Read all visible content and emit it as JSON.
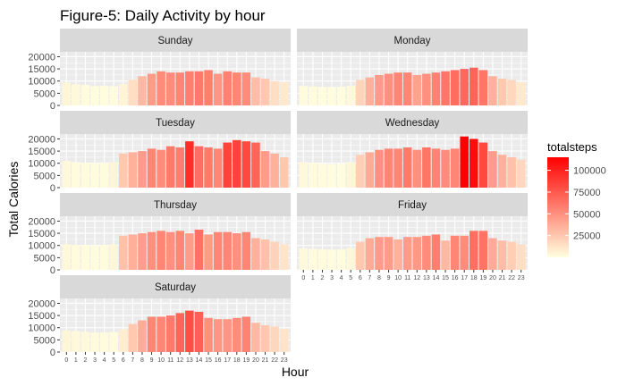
{
  "chart_data": {
    "type": "bar",
    "title": "Figure-5: Daily Activity by hour",
    "xlabel": "Hour",
    "ylabel": "Total Calories",
    "categories": [
      "0",
      "1",
      "2",
      "3",
      "4",
      "5",
      "6",
      "7",
      "8",
      "9",
      "10",
      "11",
      "12",
      "13",
      "14",
      "15",
      "16",
      "17",
      "18",
      "19",
      "20",
      "21",
      "22",
      "23"
    ],
    "y_ticks": [
      "0",
      "5000",
      "10000",
      "15000",
      "20000"
    ],
    "ylim": [
      0,
      22000
    ],
    "grid": true,
    "facet_strip_color": "#d9d9d9",
    "panel_background": "#ebebeb",
    "legend": {
      "title": "totalsteps",
      "placement": "right",
      "ticks": [
        "25000",
        "50000",
        "75000",
        "100000"
      ],
      "range": [
        0,
        115000
      ],
      "low_color": "#ffffe0",
      "high_color": "#ff0000"
    },
    "facets": [
      {
        "name": "Sunday",
        "calories": [
          9300,
          8700,
          8400,
          7900,
          8000,
          7900,
          8800,
          10500,
          12000,
          13000,
          14000,
          13500,
          13500,
          14000,
          14000,
          14500,
          13000,
          14000,
          13500,
          13500,
          11500,
          11000,
          10000,
          9500
        ],
        "steps": [
          4000,
          2500,
          2000,
          1500,
          1000,
          1200,
          5000,
          15000,
          32000,
          45000,
          52000,
          52000,
          55000,
          58000,
          60000,
          58000,
          48000,
          57000,
          55000,
          52000,
          30000,
          25000,
          15000,
          10000
        ]
      },
      {
        "name": "Monday",
        "calories": [
          8000,
          7800,
          7600,
          7500,
          7600,
          8000,
          10500,
          11500,
          12500,
          13000,
          13500,
          13500,
          12500,
          13000,
          13500,
          14000,
          14500,
          15000,
          15500,
          14500,
          12000,
          11000,
          10500,
          9500
        ],
        "steps": [
          2000,
          1500,
          1000,
          1000,
          1000,
          3000,
          20000,
          35000,
          45000,
          50000,
          55000,
          55000,
          42000,
          50000,
          57000,
          62000,
          66000,
          68000,
          70000,
          62000,
          35000,
          25000,
          18000,
          10000
        ]
      },
      {
        "name": "Tuesday",
        "calories": [
          11000,
          10500,
          10200,
          10000,
          10200,
          10500,
          14000,
          14500,
          15000,
          16000,
          15500,
          17000,
          16500,
          19000,
          17000,
          16500,
          16000,
          18500,
          19500,
          19000,
          18500,
          15000,
          14000,
          12500
        ],
        "steps": [
          3000,
          2000,
          1500,
          1500,
          1500,
          5000,
          25000,
          35000,
          45000,
          55000,
          52000,
          60000,
          58000,
          95000,
          65000,
          60000,
          55000,
          85000,
          85000,
          82000,
          70000,
          45000,
          35000,
          25000
        ]
      },
      {
        "name": "Wednesday",
        "calories": [
          10500,
          10200,
          9800,
          9600,
          9800,
          10500,
          13500,
          14500,
          15500,
          16000,
          16000,
          16500,
          15500,
          16500,
          16000,
          15500,
          16000,
          21000,
          20000,
          18500,
          15000,
          13500,
          12500,
          11500
        ],
        "steps": [
          2500,
          1500,
          1200,
          1000,
          1000,
          4000,
          22000,
          38000,
          50000,
          55000,
          55000,
          60000,
          50000,
          62000,
          56000,
          52000,
          55000,
          115000,
          110000,
          82000,
          45000,
          35000,
          28000,
          18000
        ]
      },
      {
        "name": "Thursday",
        "calories": [
          10500,
          10200,
          10200,
          10000,
          10200,
          10500,
          14000,
          14500,
          15000,
          15500,
          16000,
          15500,
          16000,
          15000,
          16500,
          14500,
          15500,
          15500,
          15000,
          15500,
          13000,
          12500,
          11500,
          10500
        ],
        "steps": [
          3000,
          1800,
          1500,
          1200,
          1200,
          4500,
          28000,
          36000,
          44000,
          50000,
          55000,
          50000,
          55000,
          45000,
          64000,
          45000,
          55000,
          55000,
          50000,
          55000,
          35000,
          28000,
          20000,
          12000
        ]
      },
      {
        "name": "Friday",
        "calories": [
          8800,
          8600,
          8400,
          8300,
          8400,
          9000,
          11500,
          13000,
          13500,
          13500,
          12500,
          13500,
          13500,
          14000,
          14500,
          12000,
          14000,
          14000,
          16000,
          16000,
          13000,
          12000,
          11500,
          10500
        ],
        "steps": [
          2500,
          1500,
          1200,
          1000,
          1000,
          3500,
          25000,
          38000,
          45000,
          45000,
          35000,
          45000,
          46000,
          52000,
          58000,
          32000,
          55000,
          52000,
          65000,
          63000,
          38000,
          30000,
          22000,
          15000
        ]
      },
      {
        "name": "Saturday",
        "calories": [
          8800,
          8600,
          8300,
          8000,
          8000,
          8200,
          9300,
          11500,
          13000,
          14500,
          14500,
          15000,
          16000,
          17000,
          16500,
          14000,
          13500,
          13500,
          14000,
          14500,
          12000,
          11000,
          10500,
          9500
        ],
        "steps": [
          4000,
          3000,
          2500,
          2000,
          1500,
          1500,
          8000,
          25000,
          38000,
          55000,
          55000,
          60000,
          70000,
          80000,
          72000,
          50000,
          48000,
          48000,
          52000,
          56000,
          32000,
          25000,
          18000,
          12000
        ]
      }
    ]
  }
}
